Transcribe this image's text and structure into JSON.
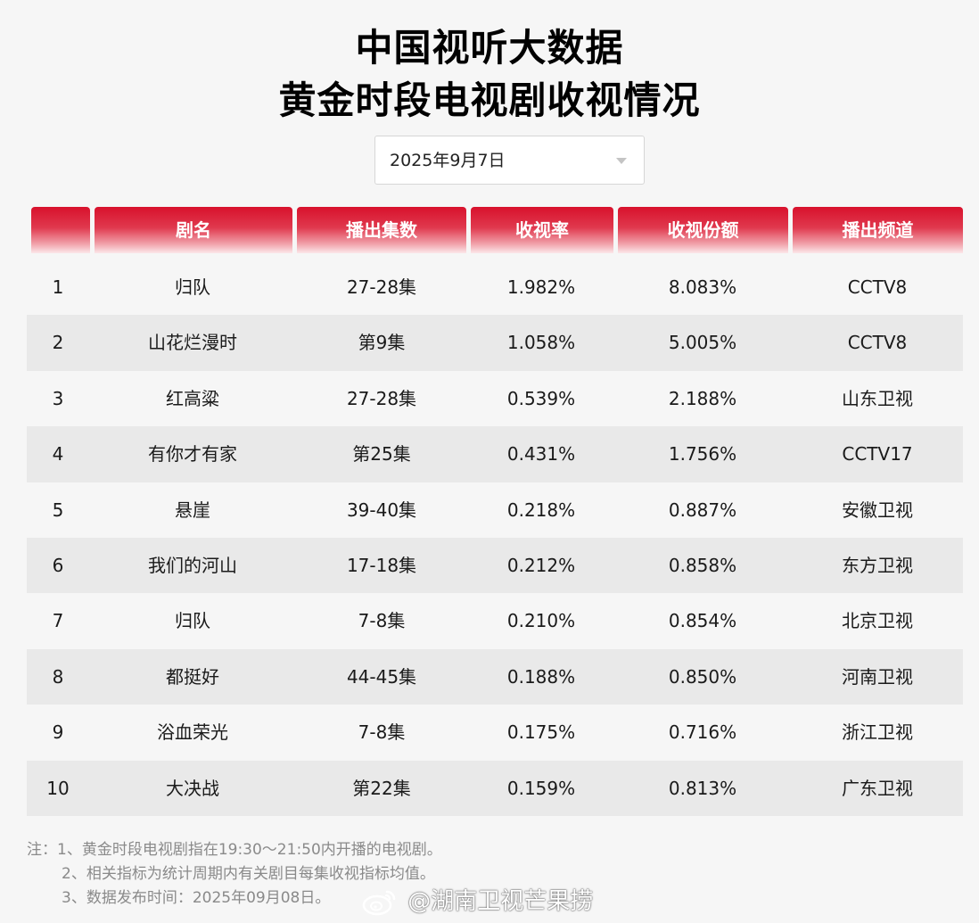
{
  "title": {
    "line1": "中国视听大数据",
    "line2": "黄金时段电视剧收视情况"
  },
  "date_select": {
    "value": "2025年9月7日"
  },
  "table": {
    "headers": [
      "",
      "剧名",
      "播出集数",
      "收视率",
      "收视份额",
      "播出频道"
    ],
    "rows": [
      [
        "1",
        "归队",
        "27-28集",
        "1.982%",
        "8.083%",
        "CCTV8"
      ],
      [
        "2",
        "山花烂漫时",
        "第9集",
        "1.058%",
        "5.005%",
        "CCTV8"
      ],
      [
        "3",
        "红高粱",
        "27-28集",
        "0.539%",
        "2.188%",
        "山东卫视"
      ],
      [
        "4",
        "有你才有家",
        "第25集",
        "0.431%",
        "1.756%",
        "CCTV17"
      ],
      [
        "5",
        "悬崖",
        "39-40集",
        "0.218%",
        "0.887%",
        "安徽卫视"
      ],
      [
        "6",
        "我们的河山",
        "17-18集",
        "0.212%",
        "0.858%",
        "东方卫视"
      ],
      [
        "7",
        "归队",
        "7-8集",
        "0.210%",
        "0.854%",
        "北京卫视"
      ],
      [
        "8",
        "都挺好",
        "44-45集",
        "0.188%",
        "0.850%",
        "河南卫视"
      ],
      [
        "9",
        "浴血荣光",
        "7-8集",
        "0.175%",
        "0.716%",
        "浙江卫视"
      ],
      [
        "10",
        "大决战",
        "第22集",
        "0.159%",
        "0.813%",
        "广东卫视"
      ]
    ]
  },
  "notes": [
    "注：1、黄金时段电视剧指在19:30～21:50内开播的电视剧。",
    "2、相关指标为统计周期内有关剧目每集收视指标均值。",
    "3、数据发布时间：2025年09月08日。"
  ],
  "watermark": {
    "text": "@湖南卫视芒果捞",
    "icon": "weibo-icon"
  },
  "colors": {
    "header_red": "#d8112c",
    "row_alt": "#e9e9e9",
    "background": "#f6f6f6"
  }
}
